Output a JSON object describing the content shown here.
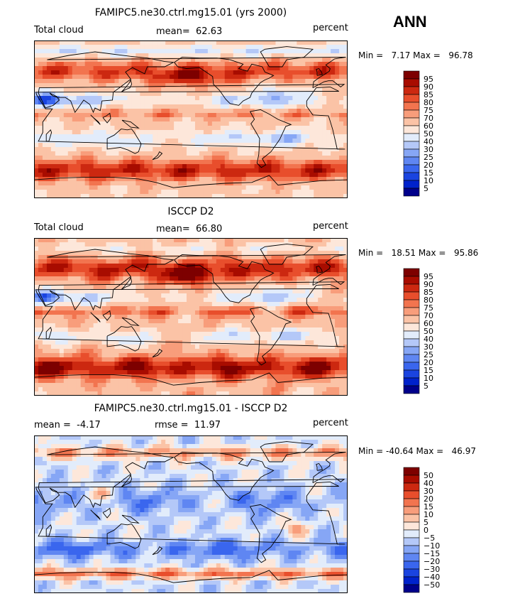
{
  "season": "ANN",
  "chart_data": [
    {
      "type": "heatmap",
      "title": "FAMIPC5.ne30.ctrl.mg15.01 (yrs 2000)",
      "variable": "Total cloud",
      "mean_label": "mean=",
      "mean": "62.63",
      "units": "percent",
      "min_label": "Min =",
      "min": "7.17",
      "max_label": "Max =",
      "max": "96.78",
      "levels": [
        "5",
        "10",
        "15",
        "20",
        "25",
        "30",
        "40",
        "50",
        "60",
        "70",
        "75",
        "80",
        "85",
        "90",
        "95"
      ],
      "colors": [
        "#00008b",
        "#0022cc",
        "#1a44e0",
        "#3a66ee",
        "#5f86f2",
        "#86a6f5",
        "#b4c8f8",
        "#e2ecfb",
        "#fde7da",
        "#fbc3a6",
        "#f89d7b",
        "#f2744f",
        "#e84e2c",
        "#cc2810",
        "#a80c00",
        "#7d0000"
      ]
    },
    {
      "type": "heatmap",
      "title": "ISCCP D2",
      "variable": "Total cloud",
      "mean_label": "mean=",
      "mean": "66.80",
      "units": "percent",
      "min_label": "Min =",
      "min": "18.51",
      "max_label": "Max =",
      "max": "95.86",
      "levels": [
        "5",
        "10",
        "15",
        "20",
        "25",
        "30",
        "40",
        "50",
        "60",
        "70",
        "75",
        "80",
        "85",
        "90",
        "95"
      ],
      "colors": [
        "#00008b",
        "#0022cc",
        "#1a44e0",
        "#3a66ee",
        "#5f86f2",
        "#86a6f5",
        "#b4c8f8",
        "#e2ecfb",
        "#fde7da",
        "#fbc3a6",
        "#f89d7b",
        "#f2744f",
        "#e84e2c",
        "#cc2810",
        "#a80c00",
        "#7d0000"
      ]
    },
    {
      "type": "heatmap",
      "title": "FAMIPC5.ne30.ctrl.mg15.01 - ISCCP D2",
      "mean_label": "mean =",
      "mean": "-4.17",
      "rmse_label": "rmse =",
      "rmse": "11.97",
      "units": "percent",
      "min_label": "Min =",
      "min": "-40.64",
      "max_label": "Max =",
      "max": "46.97",
      "levels": [
        "−50",
        "−40",
        "−30",
        "−20",
        "−15",
        "−10",
        "−5",
        "0",
        "5",
        "10",
        "15",
        "20",
        "30",
        "40",
        "50"
      ],
      "colors": [
        "#00008b",
        "#0022cc",
        "#1a44e0",
        "#3a66ee",
        "#5f86f2",
        "#86a6f5",
        "#b4c8f8",
        "#e2ecfb",
        "#fde7da",
        "#fbc3a6",
        "#f89d7b",
        "#f2744f",
        "#e84e2c",
        "#cc2810",
        "#a80c00",
        "#7d0000"
      ]
    }
  ]
}
